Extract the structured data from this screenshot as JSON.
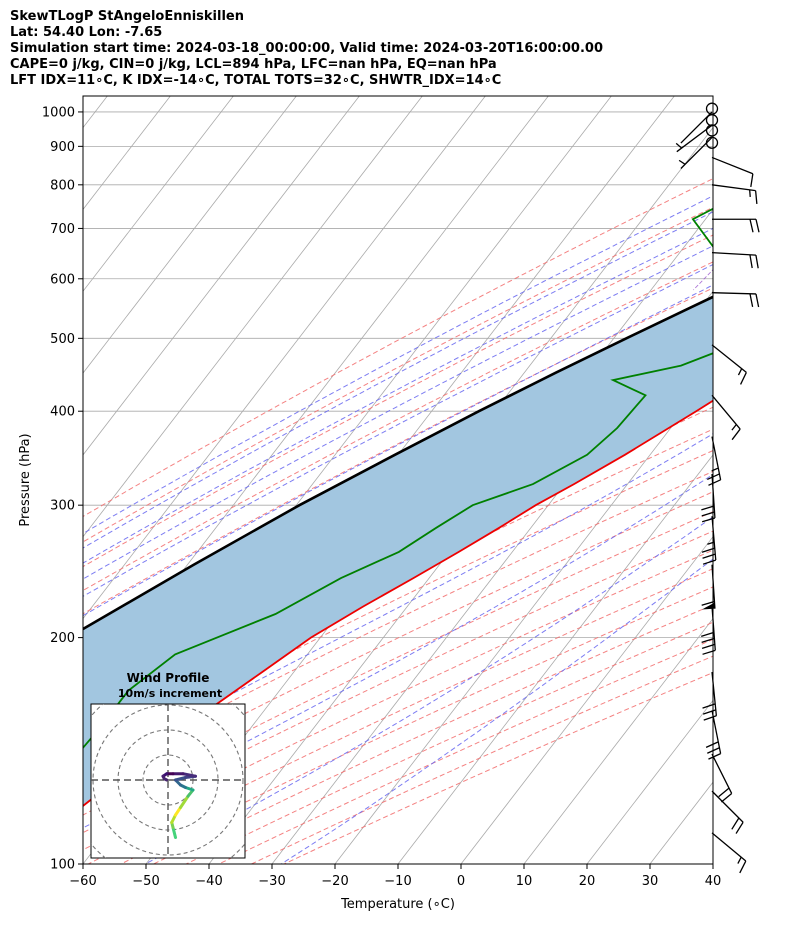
{
  "header": {
    "line1": "SkewTLogP StAngeloEnniskillen",
    "line2": "Lat: 54.40   Lon: -7.65",
    "line3": "Simulation start time: 2024-03-18_00:00:00, Valid time: 2024-03-20T16:00:00.00",
    "line4": "CAPE=0 j/kg, CIN=0 j/kg, LCL=894 hPa, LFC=nan hPa, EQ=nan hPa",
    "line5": "LFT IDX=11∘C, K IDX=-14∘C, TOTAL TOTS=32∘C, SHWTR_IDX=14∘C"
  },
  "colors": {
    "temperature": "#ee0000",
    "dewpoint": "#008000",
    "parcel": "#000000",
    "cape_fill": "#a2c6e0",
    "dry_adiabat": "#f26c6c",
    "moist_adiabat": "#6666f0",
    "mixing_ratio": "#9955cc",
    "isotherm": "#aaaaaa"
  },
  "chart_data": {
    "type": "skewt",
    "xlabel": "Temperature (∘C)",
    "ylabel": "Pressure (hPa)",
    "xlim": [
      -60,
      40
    ],
    "ylim": [
      1050,
      100
    ],
    "xticks": [
      -60,
      -50,
      -40,
      -30,
      -20,
      -10,
      0,
      10,
      20,
      30,
      40
    ],
    "yticks": [
      100,
      200,
      300,
      400,
      500,
      600,
      700,
      800,
      900,
      1000
    ],
    "temperature_profile": [
      [
        1000,
        5.0
      ],
      [
        950,
        5.5
      ],
      [
        900,
        7.5
      ],
      [
        850,
        9.0
      ],
      [
        800,
        10.5
      ],
      [
        750,
        10.0
      ],
      [
        700,
        7.5
      ],
      [
        650,
        4.0
      ],
      [
        600,
        0.0
      ],
      [
        550,
        -4.0
      ],
      [
        500,
        -8.0
      ],
      [
        450,
        -13.0
      ],
      [
        400,
        -18.0
      ],
      [
        350,
        -24.0
      ],
      [
        320,
        -28.5
      ],
      [
        300,
        -32.0
      ],
      [
        280,
        -35.0
      ],
      [
        260,
        -38.5
      ],
      [
        240,
        -42.5
      ],
      [
        220,
        -47.0
      ],
      [
        200,
        -51.5
      ],
      [
        180,
        -55.0
      ],
      [
        160,
        -59.0
      ],
      [
        140,
        -63.0
      ],
      [
        120,
        -67.0
      ],
      [
        110,
        -69.0
      ],
      [
        100,
        -71.0
      ]
    ],
    "dewpoint_profile": [
      [
        1020,
        1.0
      ],
      [
        1000,
        1.5
      ],
      [
        950,
        3.0
      ],
      [
        920,
        2.0
      ],
      [
        900,
        -2.0
      ],
      [
        870,
        -8.0
      ],
      [
        850,
        -14.0
      ],
      [
        800,
        -30.0
      ],
      [
        770,
        -38.0
      ],
      [
        720,
        -42.0
      ],
      [
        650,
        -34.0
      ],
      [
        600,
        -24.0
      ],
      [
        560,
        -17.0
      ],
      [
        520,
        -15.5
      ],
      [
        490,
        -20.0
      ],
      [
        460,
        -26.0
      ],
      [
        440,
        -35.0
      ],
      [
        420,
        -28.0
      ],
      [
        380,
        -28.5
      ],
      [
        350,
        -30.0
      ],
      [
        320,
        -35.0
      ],
      [
        300,
        -42.0
      ],
      [
        280,
        -45.0
      ],
      [
        260,
        -48.0
      ],
      [
        240,
        -54.0
      ],
      [
        215,
        -60.0
      ],
      [
        190,
        -71.0
      ],
      [
        170,
        -74.0
      ],
      [
        150,
        -74.0
      ],
      [
        120,
        -75.0
      ],
      [
        100,
        -76.0
      ]
    ],
    "parcel_profile": [
      [
        1030,
        11.0
      ],
      [
        1000,
        8.2
      ],
      [
        950,
        3.7
      ],
      [
        894,
        -1.2
      ],
      [
        850,
        -3.0
      ],
      [
        800,
        -6.5
      ],
      [
        750,
        -10.5
      ],
      [
        700,
        -15.0
      ],
      [
        650,
        -20.0
      ],
      [
        600,
        -25.5
      ],
      [
        550,
        -31.5
      ],
      [
        500,
        -38.0
      ],
      [
        450,
        -45.0
      ],
      [
        400,
        -52.5
      ],
      [
        350,
        -60.5
      ],
      [
        300,
        -69.5
      ],
      [
        250,
        -79.0
      ],
      [
        200,
        -90.0
      ],
      [
        150,
        -103.0
      ],
      [
        100,
        -120.0
      ]
    ],
    "wind_barbs": [
      {
        "p": 1000,
        "u": -1.0,
        "v": 1.0
      },
      {
        "p": 960,
        "u": -2.0,
        "v": 1.5
      },
      {
        "p": 925,
        "u": -3.0,
        "v": 3.0
      },
      {
        "p": 870,
        "u": 7.5,
        "v": 3.0
      },
      {
        "p": 800,
        "u": 15.0,
        "v": 2.0
      },
      {
        "p": 720,
        "u": 17.5,
        "v": 0.0
      },
      {
        "p": 650,
        "u": 17.5,
        "v": 1.0
      },
      {
        "p": 575,
        "u": 17.5,
        "v": 0.5
      },
      {
        "p": 490,
        "u": 12.5,
        "v": 10.0
      },
      {
        "p": 420,
        "u": 10.0,
        "v": 12.0
      },
      {
        "p": 370,
        "u": 5.0,
        "v": 25.0
      },
      {
        "p": 330,
        "u": 2.0,
        "v": 30.0
      },
      {
        "p": 290,
        "u": 3.0,
        "v": 35.0
      },
      {
        "p": 250,
        "u": 4.0,
        "v": 60.0
      },
      {
        "p": 220,
        "u": 3.0,
        "v": 40.0
      },
      {
        "p": 180,
        "u": 3.0,
        "v": 30.0
      },
      {
        "p": 160,
        "u": 6.0,
        "v": 30.0
      },
      {
        "p": 140,
        "u": 10.0,
        "v": 20.0
      },
      {
        "p": 125,
        "u": 12.5,
        "v": 12.5
      },
      {
        "p": 110,
        "u": 12.0,
        "v": 10.0
      }
    ],
    "calm_levels": [
      1010,
      975,
      945,
      910
    ],
    "hodograph": {
      "title": "Wind Profile",
      "subtitle": "10m/s increment",
      "rings_ms": [
        10,
        20,
        30,
        40
      ],
      "points": [
        [
          3,
          -23
        ],
        [
          2,
          -19
        ],
        [
          1.5,
          -17
        ],
        [
          3,
          -14
        ],
        [
          5,
          -11
        ],
        [
          8,
          -6.5
        ],
        [
          10,
          -4
        ],
        [
          7,
          -3
        ],
        [
          5,
          -2
        ],
        [
          3,
          0
        ],
        [
          7,
          1
        ],
        [
          11,
          1.5
        ],
        [
          6,
          2.5
        ],
        [
          2,
          2.5
        ],
        [
          -0.5,
          2.5
        ],
        [
          -2,
          1.5
        ],
        [
          -1.5,
          0.5
        ],
        [
          -0.5,
          0
        ]
      ]
    }
  }
}
